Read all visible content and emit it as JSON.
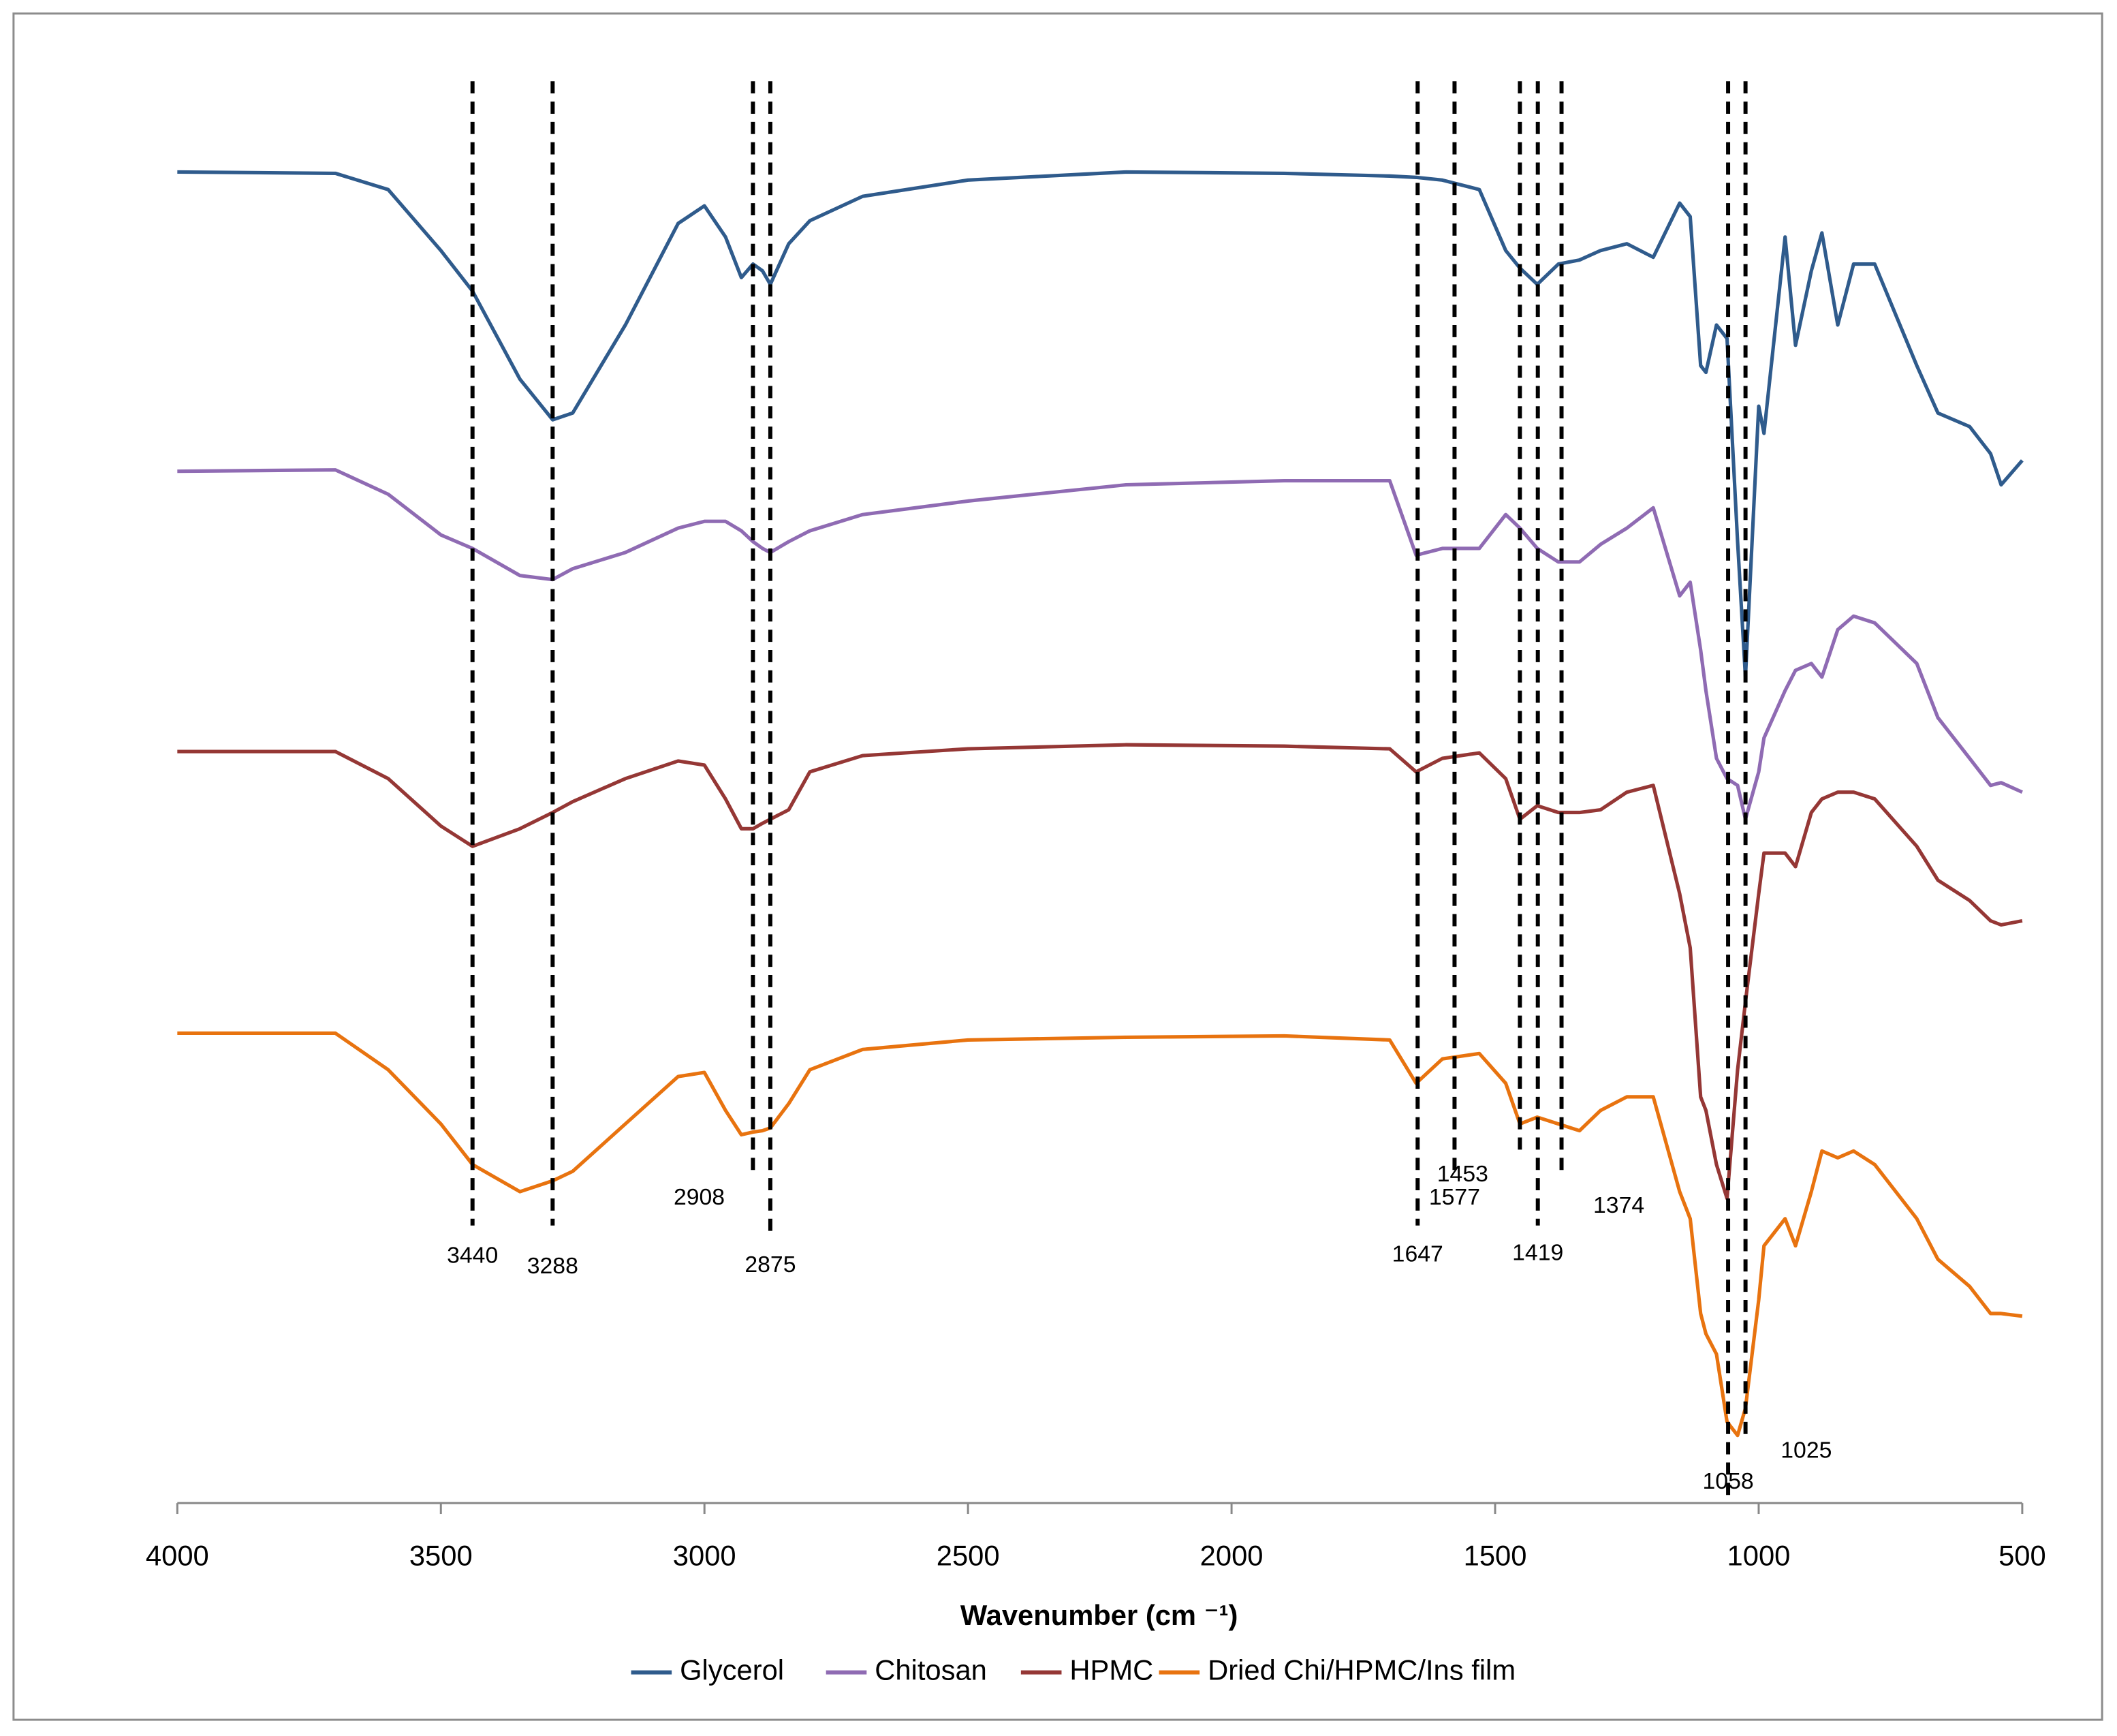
{
  "chart_data": {
    "type": "line",
    "x_label": "Wavenumber (cm ⁻¹)",
    "xlim": [
      4000,
      500
    ],
    "xticks": [
      4000,
      3500,
      3000,
      2500,
      2000,
      1500,
      1000,
      500
    ],
    "ylim": [
      0,
      107
    ],
    "grid": false,
    "legend": "bottom",
    "x": [
      4000,
      3700,
      3600,
      3500,
      3440,
      3350,
      3288,
      3250,
      3150,
      3050,
      3000,
      2960,
      2930,
      2908,
      2890,
      2875,
      2840,
      2800,
      2700,
      2500,
      2200,
      1900,
      1700,
      1650,
      1600,
      1530,
      1480,
      1453,
      1420,
      1380,
      1340,
      1300,
      1250,
      1200,
      1150,
      1130,
      1110,
      1100,
      1080,
      1060,
      1040,
      1025,
      1000,
      990,
      950,
      930,
      900,
      880,
      850,
      820,
      780,
      700,
      660,
      600,
      560,
      540,
      500
    ],
    "series": [
      {
        "name": "Glycerol",
        "color": "#2f5b8c",
        "values": [
          98.3,
          98.2,
          97,
          92.5,
          89.5,
          83,
          80,
          80.5,
          87,
          94.5,
          95.8,
          93.5,
          90.5,
          91.5,
          91,
          90,
          93,
          94.7,
          96.5,
          97.7,
          98.3,
          98.2,
          98,
          97.9,
          97.7,
          97,
          92.5,
          91.2,
          90,
          91.5,
          91.8,
          92.5,
          93,
          92,
          96,
          95,
          84,
          83.5,
          87,
          86,
          71,
          61,
          81,
          79,
          93.5,
          85.5,
          91,
          93.8,
          87,
          91.5,
          91.5,
          84,
          80.5,
          79.5,
          77.5,
          75.2,
          77
        ]
      },
      {
        "name": "Chitosan",
        "color": "#8f6bb3",
        "values": [
          76.2,
          76.3,
          74.5,
          71.5,
          70.5,
          68.5,
          68.2,
          69,
          70.2,
          72,
          72.5,
          72.5,
          71.8,
          71,
          70.5,
          70.2,
          71,
          71.8,
          73,
          74,
          75.2,
          75.5,
          75.5,
          70,
          70.5,
          70.5,
          73,
          72,
          70.5,
          69.5,
          69.5,
          70.8,
          72,
          73.5,
          67,
          68,
          63,
          60,
          55,
          53.5,
          53,
          50.5,
          54,
          56.5,
          60,
          61.5,
          62,
          61,
          64.5,
          65.5,
          65,
          62,
          58,
          55,
          53,
          53.2,
          52.5
        ]
      },
      {
        "name": "HPMC",
        "color": "#953735",
        "values": [
          55.5,
          55.5,
          53.5,
          50,
          48.5,
          49.8,
          51,
          51.8,
          53.5,
          54.8,
          54.5,
          52,
          49.8,
          49.8,
          50.2,
          50.5,
          51.2,
          54,
          55.2,
          55.7,
          56,
          55.9,
          55.7,
          54,
          55,
          55.4,
          53.5,
          50.5,
          51.5,
          51,
          51,
          51.2,
          52.5,
          53,
          45,
          41,
          30,
          29,
          25,
          22.5,
          32,
          37,
          45,
          48,
          48,
          47,
          51,
          52,
          52.5,
          52.5,
          52,
          48.5,
          46,
          44.5,
          43,
          42.7,
          43
        ]
      },
      {
        "name": "Dried Chi/HPMC/Ins film",
        "color": "#e8730f",
        "values": [
          34.7,
          34.7,
          32,
          28,
          25,
          23,
          23.8,
          24.5,
          28,
          31.5,
          31.8,
          29,
          27.2,
          27.4,
          27.5,
          27.7,
          29.5,
          32,
          33.5,
          34.2,
          34.4,
          34.5,
          34.2,
          31,
          32.8,
          33.2,
          31,
          28,
          28.5,
          28,
          27.5,
          29,
          30,
          30,
          23,
          21,
          14,
          12.5,
          11,
          6,
          5,
          7,
          15,
          19,
          21,
          19,
          23,
          26,
          25.5,
          26,
          25,
          21,
          18,
          16,
          14,
          14,
          13.8
        ]
      }
    ],
    "peaks": [
      3440,
      3288,
      2908,
      2875,
      1647,
      1577,
      1453,
      1419,
      1374,
      1058,
      1025
    ]
  }
}
